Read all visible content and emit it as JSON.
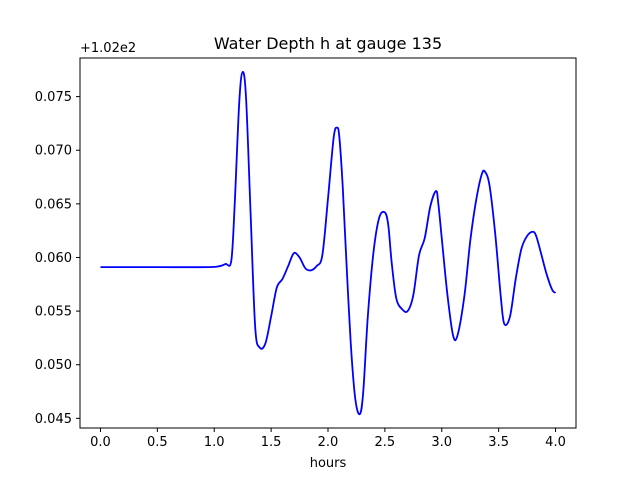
{
  "chart_data": {
    "type": "line",
    "title": "Water Depth h at gauge 135",
    "xlabel": "hours",
    "ylabel": "",
    "y_offset_label": "+1.02e2",
    "xlim": [
      -0.18,
      4.18
    ],
    "ylim": [
      0.0441,
      0.0786
    ],
    "xticks": [
      0.0,
      0.5,
      1.0,
      1.5,
      2.0,
      2.5,
      3.0,
      3.5,
      4.0
    ],
    "xtick_labels": [
      "0.0",
      "0.5",
      "1.0",
      "1.5",
      "2.0",
      "2.5",
      "3.0",
      "3.5",
      "4.0"
    ],
    "yticks": [
      0.045,
      0.05,
      0.055,
      0.06,
      0.065,
      0.07,
      0.075
    ],
    "ytick_labels": [
      "0.045",
      "0.050",
      "0.055",
      "0.060",
      "0.065",
      "0.070",
      "0.075"
    ],
    "grid": false,
    "series": [
      {
        "color": "#0000ff",
        "x": [
          0.0,
          0.5,
          0.95,
          1.05,
          1.1,
          1.15,
          1.18,
          1.22,
          1.25,
          1.28,
          1.32,
          1.36,
          1.4,
          1.45,
          1.5,
          1.55,
          1.6,
          1.65,
          1.7,
          1.75,
          1.8,
          1.85,
          1.9,
          1.95,
          2.0,
          2.05,
          2.08,
          2.1,
          2.13,
          2.16,
          2.2,
          2.24,
          2.28,
          2.31,
          2.35,
          2.4,
          2.45,
          2.5,
          2.53,
          2.56,
          2.6,
          2.65,
          2.7,
          2.75,
          2.8,
          2.85,
          2.9,
          2.95,
          2.97,
          3.0,
          3.05,
          3.1,
          3.14,
          3.2,
          3.25,
          3.3,
          3.35,
          3.38,
          3.42,
          3.47,
          3.52,
          3.55,
          3.6,
          3.65,
          3.7,
          3.75,
          3.8,
          3.83,
          3.87,
          3.92,
          3.97,
          4.0
        ],
        "y": [
          0.0591,
          0.0591,
          0.0591,
          0.0592,
          0.0594,
          0.0597,
          0.065,
          0.0745,
          0.0773,
          0.0748,
          0.064,
          0.0535,
          0.0516,
          0.052,
          0.0545,
          0.0572,
          0.058,
          0.0592,
          0.0604,
          0.06,
          0.059,
          0.0588,
          0.0592,
          0.0602,
          0.0655,
          0.0712,
          0.0721,
          0.0712,
          0.0665,
          0.06,
          0.052,
          0.0468,
          0.0454,
          0.0475,
          0.0545,
          0.0605,
          0.0637,
          0.0642,
          0.063,
          0.0595,
          0.0562,
          0.0552,
          0.055,
          0.0565,
          0.0602,
          0.0618,
          0.0648,
          0.0662,
          0.065,
          0.0618,
          0.0565,
          0.0527,
          0.0528,
          0.0565,
          0.0615,
          0.0652,
          0.0677,
          0.068,
          0.0667,
          0.0622,
          0.0562,
          0.0538,
          0.0545,
          0.058,
          0.0608,
          0.062,
          0.0624,
          0.062,
          0.0605,
          0.0585,
          0.057,
          0.0567
        ]
      }
    ]
  }
}
